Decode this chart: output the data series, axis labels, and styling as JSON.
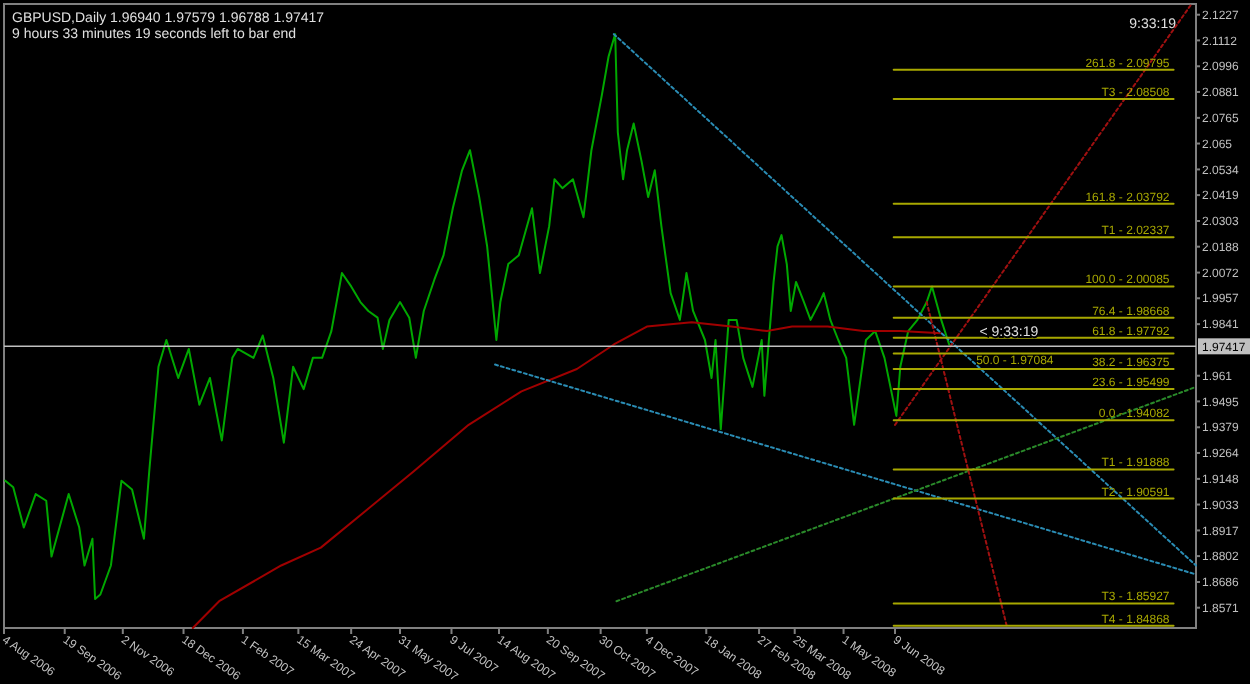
{
  "chart_data": {
    "type": "line",
    "title": "GBPUSD,Daily  1.96940 1.97579 1.96788 1.97417",
    "subtitle": "9 hours 33 minutes 19 seconds left to bar end",
    "xlim": [
      "2006-08-04",
      "2009-01-23"
    ],
    "ylim": [
      1.848,
      2.1275
    ],
    "xticks": [
      {
        "value": "2006-08-04",
        "label": "4 Aug 2006"
      },
      {
        "value": "2006-09-19",
        "label": "19 Sep 2006"
      },
      {
        "value": "2006-11-02",
        "label": "2 Nov 2006"
      },
      {
        "value": "2006-12-18",
        "label": "18 Dec 2006"
      },
      {
        "value": "2007-02-01",
        "label": "1 Feb 2007"
      },
      {
        "value": "2007-03-15",
        "label": "15 Mar 2007"
      },
      {
        "value": "2007-04-24",
        "label": "24 Apr 2007"
      },
      {
        "value": "2007-05-31",
        "label": "31 May 2007"
      },
      {
        "value": "2007-07-09",
        "label": "9 Jul 2007"
      },
      {
        "value": "2007-08-14",
        "label": "14 Aug 2007"
      },
      {
        "value": "2007-09-20",
        "label": "20 Sep 2007"
      },
      {
        "value": "2007-10-30",
        "label": "30 Oct 2007"
      },
      {
        "value": "2007-12-04",
        "label": "4 Dec 2007"
      },
      {
        "value": "2008-01-18",
        "label": "18 Jan 2008"
      },
      {
        "value": "2008-02-27",
        "label": "27 Feb 2008"
      },
      {
        "value": "2008-03-25",
        "label": "25 Mar 2008"
      },
      {
        "value": "2008-05-01",
        "label": "1 May 2008"
      },
      {
        "value": "2008-06-09",
        "label": "9 Jun 2008"
      }
    ],
    "yticks": [
      2.1227,
      2.1112,
      2.0996,
      2.0881,
      2.0765,
      2.065,
      2.0534,
      2.0419,
      2.0303,
      2.0188,
      2.0072,
      1.9957,
      1.9841,
      1.961,
      1.9495,
      1.9379,
      1.9264,
      1.9148,
      1.9033,
      1.8917,
      1.8802,
      1.8686,
      1.8571
    ],
    "series": [
      {
        "type": "line",
        "color": "#00a800",
        "x": [
          "2006-08-05",
          "2006-08-11",
          "2006-08-19",
          "2006-08-28",
          "2006-09-05",
          "2006-09-09",
          "2006-09-22",
          "2006-09-30",
          "2006-10-04",
          "2006-10-10",
          "2006-10-12",
          "2006-10-16",
          "2006-10-24",
          "2006-11-01",
          "2006-11-09",
          "2006-11-18",
          "2006-11-22",
          "2006-11-29",
          "2006-12-05",
          "2006-12-14",
          "2006-12-22",
          "2006-12-30",
          "2007-01-07",
          "2007-01-16",
          "2007-01-24",
          "2007-01-28",
          "2007-02-09",
          "2007-02-16",
          "2007-02-24",
          "2007-03-04",
          "2007-03-11",
          "2007-03-19",
          "2007-03-26",
          "2007-04-02",
          "2007-04-09",
          "2007-04-17",
          "2007-04-24",
          "2007-05-01",
          "2007-05-07",
          "2007-05-14",
          "2007-05-18",
          "2007-05-23",
          "2007-05-31",
          "2007-06-07",
          "2007-06-12",
          "2007-06-18",
          "2007-06-26",
          "2007-07-03",
          "2007-07-10",
          "2007-07-17",
          "2007-07-23",
          "2007-07-30",
          "2007-08-05",
          "2007-08-12",
          "2007-08-15",
          "2007-08-21",
          "2007-08-29",
          "2007-09-08",
          "2007-09-14",
          "2007-09-21",
          "2007-09-25",
          "2007-10-01",
          "2007-10-09",
          "2007-10-17",
          "2007-10-23",
          "2007-10-31",
          "2007-11-05",
          "2007-11-10",
          "2007-11-12",
          "2007-11-16",
          "2007-11-19",
          "2007-11-24",
          "2007-11-30",
          "2007-12-05",
          "2007-12-10",
          "2007-12-15",
          "2007-12-22",
          "2007-12-29",
          "2008-01-03",
          "2008-01-08",
          "2008-01-17",
          "2008-01-22",
          "2008-01-25",
          "2008-01-29",
          "2008-02-04",
          "2008-02-10",
          "2008-02-15",
          "2008-02-22",
          "2008-02-29",
          "2008-03-02",
          "2008-03-06",
          "2008-03-09",
          "2008-03-12",
          "2008-03-15",
          "2008-03-19",
          "2008-03-22",
          "2008-03-26",
          "2008-04-01",
          "2008-04-06",
          "2008-04-13",
          "2008-04-16",
          "2008-04-21",
          "2008-04-27",
          "2008-05-03",
          "2008-05-09",
          "2008-05-18",
          "2008-05-25",
          "2008-06-01",
          "2008-06-10",
          "2008-06-13",
          "2008-06-19",
          "2008-06-26",
          "2008-07-03",
          "2008-07-07",
          "2008-07-14",
          "2008-07-20"
        ],
        "values": [
          1.914,
          1.911,
          1.893,
          1.908,
          1.905,
          1.88,
          1.908,
          1.893,
          1.876,
          1.888,
          1.861,
          1.863,
          1.876,
          1.914,
          1.91,
          1.888,
          1.918,
          1.965,
          1.977,
          1.96,
          1.973,
          1.948,
          1.96,
          1.932,
          1.969,
          1.973,
          1.969,
          1.979,
          1.96,
          1.931,
          1.965,
          1.955,
          1.969,
          1.969,
          1.981,
          2.007,
          2.001,
          1.994,
          1.99,
          1.987,
          1.973,
          1.986,
          1.994,
          1.987,
          1.969,
          1.99,
          2.004,
          2.015,
          2.036,
          2.053,
          2.062,
          2.041,
          2.019,
          1.977,
          1.994,
          2.011,
          2.015,
          2.036,
          2.007,
          2.028,
          2.049,
          2.045,
          2.049,
          2.032,
          2.062,
          2.087,
          2.104,
          2.114,
          2.07,
          2.049,
          2.062,
          2.074,
          2.057,
          2.041,
          2.053,
          2.028,
          1.998,
          1.986,
          2.007,
          1.99,
          1.977,
          1.96,
          1.977,
          1.937,
          1.986,
          1.986,
          1.969,
          1.956,
          1.977,
          1.952,
          1.981,
          2.003,
          2.019,
          2.024,
          2.011,
          1.99,
          2.003,
          1.994,
          1.986,
          1.994,
          1.998,
          1.986,
          1.977,
          1.969,
          1.939,
          1.977,
          1.981,
          1.969,
          1.943,
          1.965,
          1.981,
          1.986,
          1.994,
          2.001,
          1.986,
          1.975
        ]
      },
      {
        "type": "line",
        "color": "#a00000",
        "x": [
          "2006-12-25",
          "2007-01-14",
          "2007-03-02",
          "2007-04-01",
          "2007-05-06",
          "2007-06-10",
          "2007-07-22",
          "2007-08-31",
          "2007-10-12",
          "2007-11-09",
          "2007-12-04",
          "2008-01-07",
          "2008-02-06",
          "2008-03-04",
          "2008-03-23",
          "2008-04-19",
          "2008-05-16",
          "2008-06-13",
          "2008-07-14"
        ],
        "values": [
          1.848,
          1.86,
          1.876,
          1.884,
          1.901,
          1.918,
          1.939,
          1.954,
          1.964,
          1.975,
          1.983,
          1.985,
          1.983,
          1.981,
          1.983,
          1.983,
          1.981,
          1.981,
          1.98
        ]
      },
      {
        "type": "line",
        "color": "#2a8cb4",
        "line_style": "dotted",
        "x": [
          "2007-11-09",
          "2009-01-23"
        ],
        "values": [
          2.114,
          1.876
        ]
      },
      {
        "type": "line",
        "color": "#2a8cb4",
        "line_style": "dotted",
        "x": [
          "2007-08-11",
          "2009-01-23"
        ],
        "values": [
          1.966,
          1.872
        ]
      },
      {
        "type": "line",
        "color": "#2a8a2a",
        "line_style": "dotted",
        "x": [
          "2007-11-11",
          "2009-01-23"
        ],
        "values": [
          1.86,
          1.956
        ]
      },
      {
        "type": "line",
        "color": "#a01010",
        "line_style": "dotted",
        "x": [
          "2008-06-09",
          "2009-01-19"
        ],
        "values": [
          1.939,
          2.127
        ]
      },
      {
        "type": "line",
        "color": "#a01010",
        "line_style": "dotted",
        "x": [
          "2008-07-03",
          "2008-09-02"
        ],
        "values": [
          1.994,
          1.848
        ]
      },
      {
        "type": "line",
        "color": "#a8a800",
        "name": "261.8 - 2.09795",
        "x": [
          "2008-06-08",
          "2009-01-06"
        ],
        "values": [
          2.098,
          2.098
        ]
      },
      {
        "type": "line",
        "color": "#a8a800",
        "name": "T3 - 2.08508",
        "x": [
          "2008-06-08",
          "2009-01-06"
        ],
        "values": [
          2.085,
          2.085
        ]
      },
      {
        "type": "line",
        "color": "#a8a800",
        "name": "161.8 - 2.03792",
        "x": [
          "2008-06-08",
          "2009-01-06"
        ],
        "values": [
          2.038,
          2.038
        ]
      },
      {
        "type": "line",
        "color": "#a8a800",
        "name": "T1 - 2.02337",
        "x": [
          "2008-06-08",
          "2009-01-06"
        ],
        "values": [
          2.023,
          2.023
        ]
      },
      {
        "type": "line",
        "color": "#a8a800",
        "name": "100.0 - 2.00085",
        "x": [
          "2008-06-08",
          "2009-01-06"
        ],
        "values": [
          2.001,
          2.001
        ]
      },
      {
        "type": "line",
        "color": "#a8a800",
        "name": "76.4 - 1.98668",
        "x": [
          "2008-06-08",
          "2009-01-06"
        ],
        "values": [
          1.987,
          1.987
        ]
      },
      {
        "type": "line",
        "color": "#a8a800",
        "name": "61.8 - 1.97792",
        "x": [
          "2008-06-08",
          "2009-01-06"
        ],
        "values": [
          1.978,
          1.978
        ]
      },
      {
        "type": "line",
        "color": "#a8a800",
        "name": "50.0 - 1.97084",
        "x": [
          "2008-06-08",
          "2009-01-06"
        ],
        "values": [
          1.971,
          1.971
        ]
      },
      {
        "type": "line",
        "color": "#a8a800",
        "name": "38.2 - 1.96375",
        "x": [
          "2008-06-08",
          "2009-01-06"
        ],
        "values": [
          1.964,
          1.964
        ]
      },
      {
        "type": "line",
        "color": "#a8a800",
        "name": "23.6 - 1.95499",
        "x": [
          "2008-06-08",
          "2009-01-06"
        ],
        "values": [
          1.955,
          1.955
        ]
      },
      {
        "type": "line",
        "color": "#a8a800",
        "name": "0.0 - 1.94082",
        "x": [
          "2008-06-08",
          "2009-01-06"
        ],
        "values": [
          1.941,
          1.941
        ]
      },
      {
        "type": "line",
        "color": "#a8a800",
        "name": "T1 - 1.91888",
        "x": [
          "2008-06-08",
          "2009-01-06"
        ],
        "values": [
          1.919,
          1.919
        ]
      },
      {
        "type": "line",
        "color": "#a8a800",
        "name": "T2 - 1.90591",
        "x": [
          "2008-06-08",
          "2009-01-06"
        ],
        "values": [
          1.906,
          1.906
        ]
      },
      {
        "type": "line",
        "color": "#a8a800",
        "name": "T3 - 1.85927",
        "x": [
          "2008-06-08",
          "2009-01-06"
        ],
        "values": [
          1.859,
          1.859
        ]
      },
      {
        "type": "line",
        "color": "#a8a800",
        "name": "T4 - 1.84868",
        "x": [
          "2008-06-08",
          "2009-01-06"
        ],
        "values": [
          1.849,
          1.849
        ]
      }
    ],
    "ref_lines": [
      {
        "axis": "y",
        "value": 1.97417,
        "label": "1.97417",
        "color": "#c0c0c0"
      }
    ],
    "annotations": [
      "9:33:19",
      {
        "text": "< 9:33:19",
        "x": "2008-08-12",
        "y": 1.975
      }
    ]
  }
}
